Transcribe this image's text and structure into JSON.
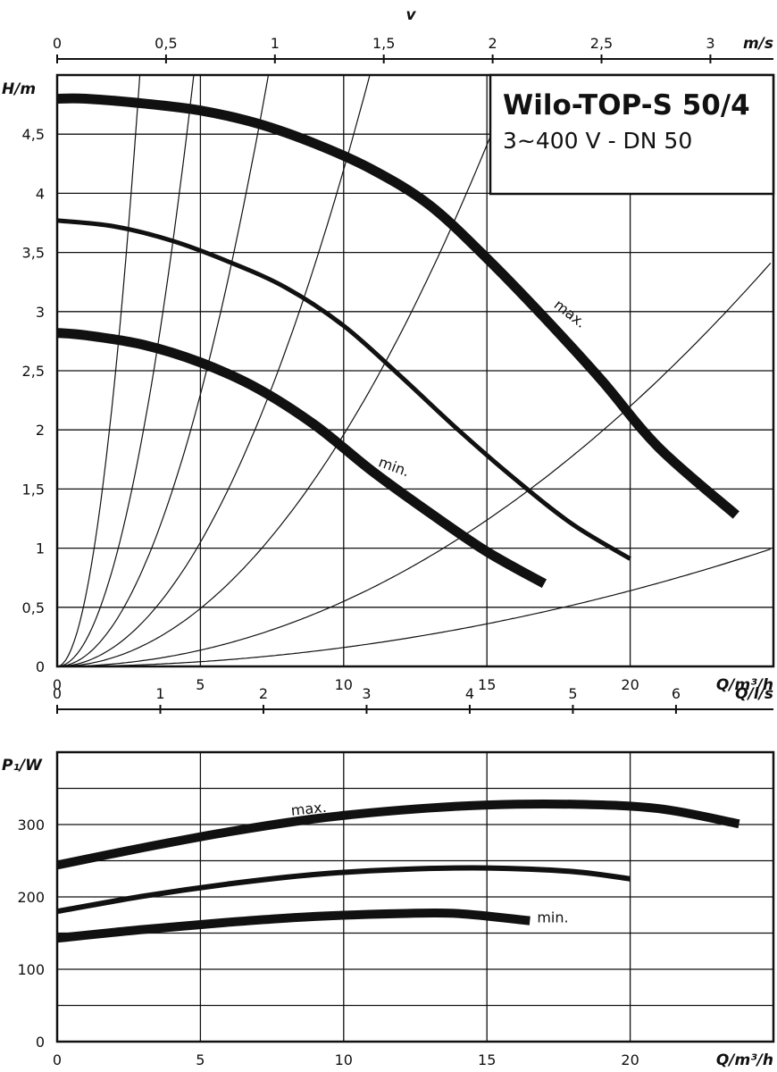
{
  "chart_data": [
    {
      "type": "line",
      "title": "Wilo-TOP-S 50/4",
      "subtitle": "3~400 V - DN 50",
      "xlabel": "Q/m³/h",
      "ylabel": "H/m",
      "top_axis_label": "m/s",
      "top_axis_title": "v",
      "xlim": [
        0,
        25
      ],
      "ylim": [
        0,
        5
      ],
      "x_ticks": [
        "0",
        "5",
        "10",
        "15",
        "20"
      ],
      "y_ticks": [
        "0",
        "0,5",
        "1",
        "1,5",
        "2",
        "2,5",
        "3",
        "3,5",
        "4",
        "4,5"
      ],
      "top_ticks": [
        "0",
        "0,5",
        "1",
        "1,5",
        "2",
        "2,5",
        "3"
      ],
      "top_tick_q": [
        0,
        3.8,
        7.6,
        11.4,
        15.2,
        19.0,
        22.8
      ],
      "grid": true,
      "system_curves_k": [
        0.6,
        0.22,
        0.092,
        0.042,
        0.0196,
        0.0055,
        0.0016
      ],
      "series": [
        {
          "name": "max.",
          "x": [
            0,
            1,
            3,
            5,
            7,
            9,
            11,
            13,
            15,
            17,
            19,
            21,
            23.7
          ],
          "y": [
            4.8,
            4.8,
            4.76,
            4.7,
            4.59,
            4.42,
            4.2,
            3.9,
            3.45,
            2.95,
            2.42,
            1.85,
            1.28
          ]
        },
        {
          "name": "",
          "x": [
            0,
            2,
            4,
            6,
            8,
            10,
            12,
            14,
            16,
            18,
            20
          ],
          "y": [
            3.77,
            3.72,
            3.6,
            3.42,
            3.2,
            2.88,
            2.45,
            2.0,
            1.58,
            1.2,
            0.91
          ]
        },
        {
          "name": "min.",
          "x": [
            0,
            1,
            3,
            5,
            7,
            9,
            11,
            13,
            15,
            17
          ],
          "y": [
            2.82,
            2.8,
            2.72,
            2.57,
            2.35,
            2.04,
            1.65,
            1.3,
            0.97,
            0.7
          ]
        }
      ],
      "labels": [
        {
          "text": "max.",
          "x": 17.8,
          "y": 2.95,
          "angle": 38
        },
        {
          "text": "min.",
          "x": 11.7,
          "y": 1.65,
          "angle": 20
        }
      ]
    },
    {
      "type": "line",
      "xlabel": "Q/m³/h",
      "ylabel": "P₁/W",
      "top_axis_label": "Q/l/s",
      "xlim": [
        0,
        25
      ],
      "ylim": [
        0,
        400
      ],
      "x_ticks": [
        "0",
        "5",
        "10",
        "15",
        "20"
      ],
      "y_ticks": [
        "0",
        "100",
        "200",
        "300"
      ],
      "top_ticks": [
        "0",
        "1",
        "2",
        "3",
        "4",
        "5",
        "6"
      ],
      "top_tick_q": [
        0,
        3.6,
        7.2,
        10.8,
        14.4,
        18.0,
        21.6
      ],
      "grid": true,
      "series": [
        {
          "name": "max.",
          "x": [
            0,
            3,
            6,
            9,
            12,
            15,
            18,
            21,
            23.8
          ],
          "y": [
            244,
            268,
            290,
            308,
            320,
            327,
            328,
            322,
            301
          ]
        },
        {
          "name": "",
          "x": [
            0,
            3,
            6,
            9,
            12,
            15,
            18,
            20
          ],
          "y": [
            180,
            201,
            218,
            231,
            238,
            240,
            235,
            225
          ]
        },
        {
          "name": "min.",
          "x": [
            0,
            3,
            6,
            9,
            12,
            14,
            16.5
          ],
          "y": [
            143,
            155,
            165,
            173,
            177,
            177,
            167
          ]
        }
      ],
      "labels": [
        {
          "text": "max.",
          "x": 8.8,
          "y": 315,
          "angle": -6
        },
        {
          "text": "min.",
          "x": 17.3,
          "y": 165,
          "angle": 0
        }
      ]
    }
  ]
}
